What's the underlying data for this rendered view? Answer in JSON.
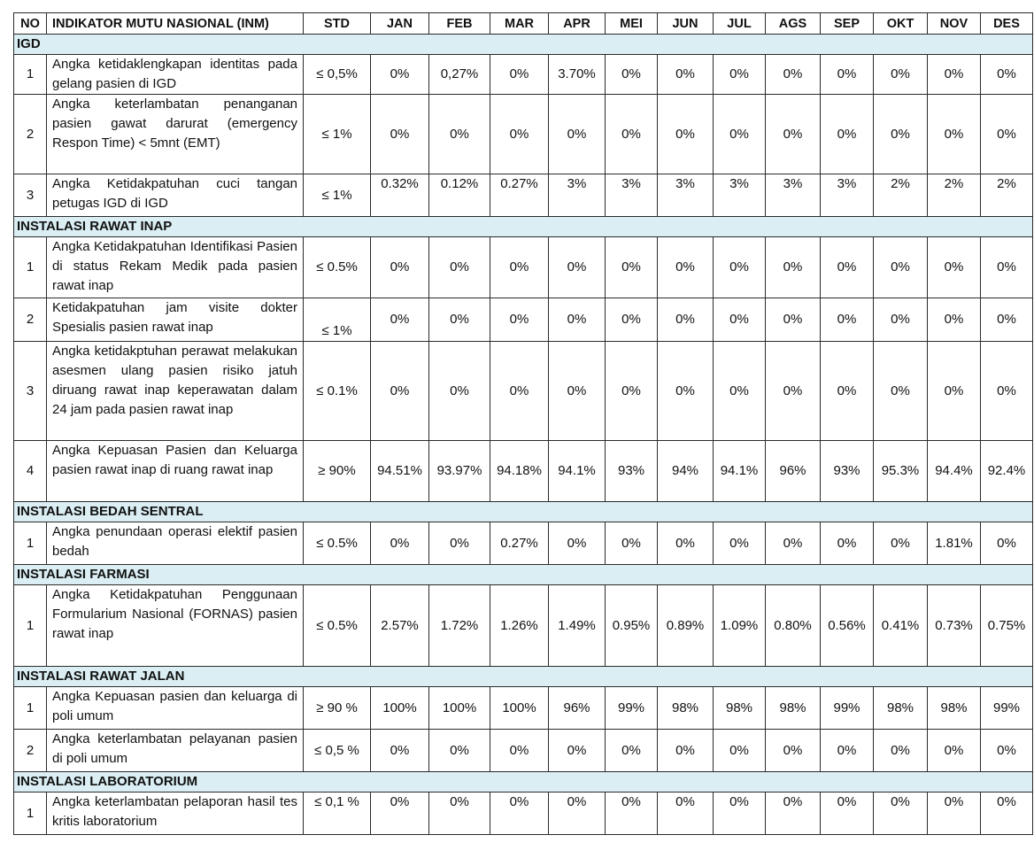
{
  "header": {
    "no": "NO",
    "indicator": "INDIKATOR MUTU NASIONAL (INM)",
    "std": "STD",
    "months": [
      "JAN",
      "FEB",
      "MAR",
      "APR",
      "MEI",
      "JUN",
      "JUL",
      "AGS",
      "SEP",
      "OKT",
      "NOV",
      "DES"
    ]
  },
  "sections": [
    {
      "title": "IGD",
      "rows": [
        {
          "no": "1",
          "indicator": "Angka ketidaklengkapan identitas pada gelang pasien di IGD",
          "std": "≤ 0,5%",
          "values": [
            "0%",
            "0,27%",
            "0%",
            "3.70%",
            "0%",
            "0%",
            "0%",
            "0%",
            "0%",
            "0%",
            "0%",
            "0%"
          ]
        },
        {
          "no": "2",
          "indicator": "Angka keterlambatan penanganan pasien gawat darurat (emergency Respon Time) < 5mnt (EMT)",
          "std": "≤ 1%",
          "values": [
            "0%",
            "0%",
            "0%",
            "0%",
            "0%",
            "0%",
            "0%",
            "0%",
            "0%",
            "0%",
            "0%",
            "0%"
          ]
        },
        {
          "no": "3",
          "indicator": "Angka Ketidakpatuhan cuci tangan petugas IGD di IGD",
          "std": "≤ 1%",
          "values_align": "top",
          "values": [
            "0.32%",
            "0.12%",
            "0.27%",
            "3%",
            "3%",
            "3%",
            "3%",
            "3%",
            "3%",
            "2%",
            "2%",
            "2%"
          ]
        }
      ]
    },
    {
      "title": "INSTALASI RAWAT INAP",
      "rows": [
        {
          "no": "1",
          "indicator": "Angka Ketidakpatuhan Identifikasi Pasien di status Rekam Medik pada pasien rawat inap",
          "std": "≤ 0.5%",
          "values": [
            "0%",
            "0%",
            "0%",
            "0%",
            "0%",
            "0%",
            "0%",
            "0%",
            "0%",
            "0%",
            "0%",
            "0%"
          ]
        },
        {
          "no": "2",
          "indicator": "Ketidakpatuhan jam visite dokter Spesialis pasien rawat inap",
          "std": "≤ 1%",
          "std_align": "bottom",
          "values": [
            "0%",
            "0%",
            "0%",
            "0%",
            "0%",
            "0%",
            "0%",
            "0%",
            "0%",
            "0%",
            "0%",
            "0%"
          ]
        },
        {
          "no": "3",
          "indicator": "Angka ketidakptuhan perawat melakukan asesmen ulang pasien risiko jatuh diruang rawat inap keperawatan dalam 24 jam pada pasien rawat inap",
          "std": "≤ 0.1%",
          "values": [
            "0%",
            "0%",
            "0%",
            "0%",
            "0%",
            "0%",
            "0%",
            "0%",
            "0%",
            "0%",
            "0%",
            "0%"
          ]
        },
        {
          "no": "4",
          "indicator": "Angka Kepuasan Pasien dan Keluarga pasien rawat inap di ruang rawat inap",
          "std": "≥ 90%",
          "values": [
            "94.51%",
            "93.97%",
            "94.18%",
            "94.1%",
            "93%",
            "94%",
            "94.1%",
            "96%",
            "93%",
            "95.3%",
            "94.4%",
            "92.4%"
          ]
        }
      ]
    },
    {
      "title": "INSTALASI BEDAH SENTRAL",
      "rows": [
        {
          "no": "1",
          "indicator": "Angka penundaan operasi elektif pasien bedah",
          "std": "≤ 0.5%",
          "values": [
            "0%",
            "0%",
            "0.27%",
            "0%",
            "0%",
            "0%",
            "0%",
            "0%",
            "0%",
            "0%",
            "1.81%",
            "0%"
          ]
        }
      ]
    },
    {
      "title": "INSTALASI FARMASI",
      "rows": [
        {
          "no": "1",
          "indicator": "Angka Ketidakpatuhan Penggunaan Formularium Nasional (FORNAS) pasien rawat inap",
          "std": "≤ 0.5%",
          "values": [
            "2.57%",
            "1.72%",
            "1.26%",
            "1.49%",
            "0.95%",
            "0.89%",
            "1.09%",
            "0.80%",
            "0.56%",
            "0.41%",
            "0.73%",
            "0.75%"
          ]
        }
      ]
    },
    {
      "title": "INSTALASI RAWAT JALAN",
      "rows": [
        {
          "no": "1",
          "indicator": "Angka Kepuasan pasien dan keluarga di poli umum",
          "std": "≥ 90 %",
          "values": [
            "100%",
            "100%",
            "100%",
            "96%",
            "99%",
            "98%",
            "98%",
            "98%",
            "99%",
            "98%",
            "98%",
            "99%"
          ]
        },
        {
          "no": "2",
          "indicator": "Angka keterlambatan pelayanan pasien di poli umum",
          "std": "≤ 0,5 %",
          "values": [
            "0%",
            "0%",
            "0%",
            "0%",
            "0%",
            "0%",
            "0%",
            "0%",
            "0%",
            "0%",
            "0%",
            "0%"
          ]
        }
      ]
    },
    {
      "title": "INSTALASI LABORATORIUM",
      "rows": [
        {
          "no": "1",
          "indicator": "Angka keterlambatan pelaporan hasil tes kritis laboratorium",
          "std": "≤ 0,1 %",
          "std_align": "top",
          "values_align": "top",
          "values": [
            "0%",
            "0%",
            "0%",
            "0%",
            "0%",
            "0%",
            "0%",
            "0%",
            "0%",
            "0%",
            "0%",
            "0%"
          ]
        }
      ]
    }
  ]
}
